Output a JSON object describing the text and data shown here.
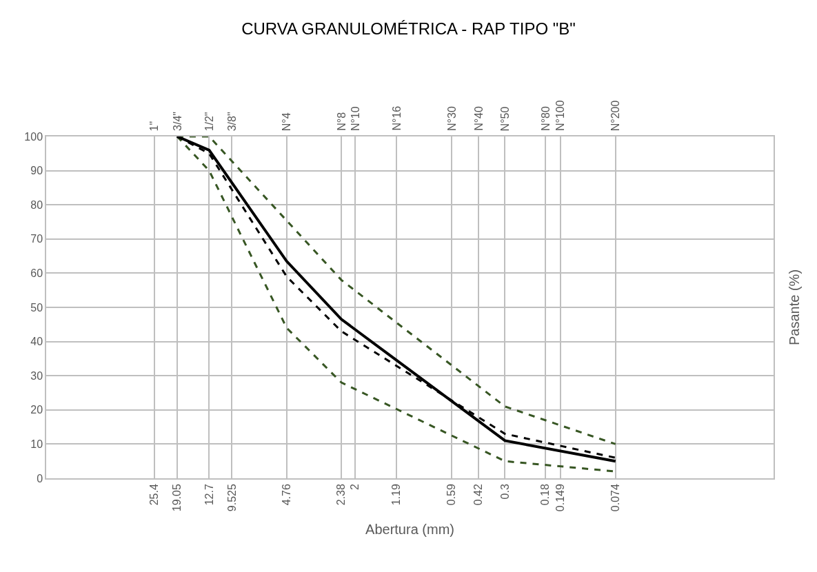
{
  "chart_data": {
    "type": "line",
    "title": "CURVA GRANULOMÉTRICA - RAP TIPO \"B\"",
    "xlabel": "Abertura (mm)",
    "ylabel": "Pasante (%)",
    "log": "x",
    "grid": true,
    "xlim": [
      100,
      0.01
    ],
    "xticks": [
      25.4,
      19.05,
      12.7,
      9.525,
      4.76,
      2.38,
      2,
      1.19,
      0.59,
      0.42,
      0.3,
      0.18,
      0.149,
      0.074
    ],
    "annotations": [
      "1\"",
      "3/4\"",
      "1/2\"",
      "3/8\"",
      "N°4",
      "N°8",
      "N°10",
      "N°16",
      "N°30",
      "N°40",
      "N°50",
      "N°80",
      "N°100",
      "N°200"
    ],
    "ylim": [
      0,
      100
    ],
    "yticks": [
      0,
      10,
      20,
      30,
      40,
      50,
      60,
      70,
      80,
      90,
      100
    ],
    "marker": "none",
    "series": [
      {
        "color": "#375623",
        "line_style": "dashed",
        "x": [
          19.05,
          12.7,
          2.38,
          0.3,
          0.074
        ],
        "values": [
          100,
          100,
          58,
          21,
          10
        ]
      },
      {
        "color": "#375623",
        "line_style": "dashed",
        "x": [
          19.05,
          12.7,
          4.76,
          2.38,
          0.3,
          0.074
        ],
        "values": [
          100,
          90,
          44,
          28,
          5,
          2
        ]
      },
      {
        "color": "#000000",
        "line_style": "dashed",
        "x": [
          19.05,
          12.7,
          4.76,
          2.38,
          0.3,
          0.074
        ],
        "values": [
          100,
          95,
          59,
          43,
          13,
          6
        ]
      },
      {
        "color": "#000000",
        "line_style": "solid",
        "x": [
          19.05,
          12.7,
          4.76,
          2.38,
          0.3,
          0.074
        ],
        "values": [
          100,
          96,
          63.5,
          46.5,
          11,
          5
        ]
      }
    ]
  }
}
